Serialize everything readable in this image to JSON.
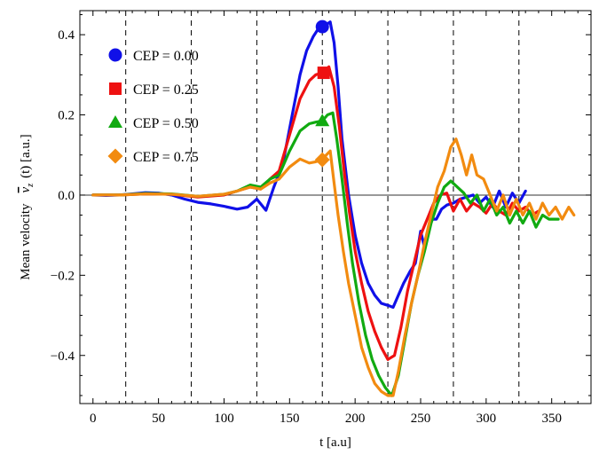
{
  "chart_data": {
    "type": "line",
    "xlabel": "t  [a.u]",
    "ylabel_prefix": "Mean velocity",
    "ylabel_symbol": "v",
    "ylabel_subscript": "z",
    "ylabel_suffix": "(t)  [a.u.]",
    "xlim": [
      -10,
      380
    ],
    "ylim": [
      -0.52,
      0.46
    ],
    "x_ticks": [
      0,
      50,
      100,
      150,
      200,
      250,
      300,
      350
    ],
    "y_ticks": [
      0.4,
      0.2,
      0.0,
      -0.2,
      -0.4
    ],
    "y_tick_labels": [
      "0.4",
      "0.2",
      "0.0",
      "−0.2",
      "−0.4"
    ],
    "dashed_verticals": [
      25,
      75,
      125,
      175,
      225,
      275,
      325
    ],
    "zero_line": true,
    "grid": false,
    "legend_position": "top-left",
    "series": [
      {
        "name": "CEP = 0.00",
        "color": "#1010e8",
        "marker": "circle",
        "peak_marker": {
          "x": 175,
          "y": 0.42
        },
        "x": [
          0,
          10,
          20,
          30,
          40,
          50,
          60,
          70,
          80,
          90,
          100,
          110,
          118,
          125,
          132,
          138,
          145,
          152,
          158,
          163,
          168,
          172,
          175,
          178,
          181,
          184,
          187,
          190,
          195,
          200,
          205,
          210,
          215,
          220,
          225,
          229,
          233,
          237,
          242,
          246,
          250,
          253,
          256,
          259,
          262,
          266,
          270,
          275,
          280,
          285,
          290,
          295,
          300,
          305,
          310,
          315,
          320,
          325,
          330
        ],
        "y": [
          0.0,
          -0.001,
          0.0,
          0.003,
          0.006,
          0.005,
          0.0,
          -0.01,
          -0.018,
          -0.022,
          -0.028,
          -0.035,
          -0.03,
          -0.01,
          -0.038,
          0.02,
          0.08,
          0.2,
          0.3,
          0.36,
          0.395,
          0.415,
          0.42,
          0.425,
          0.432,
          0.38,
          0.27,
          0.14,
          0.0,
          -0.1,
          -0.17,
          -0.22,
          -0.25,
          -0.27,
          -0.275,
          -0.28,
          -0.25,
          -0.22,
          -0.19,
          -0.17,
          -0.09,
          -0.13,
          -0.08,
          -0.06,
          -0.06,
          -0.035,
          -0.025,
          -0.02,
          -0.01,
          -0.005,
          0.0,
          -0.02,
          -0.005,
          -0.03,
          0.01,
          -0.03,
          0.005,
          -0.02,
          0.01
        ]
      },
      {
        "name": "CEP = 0.25",
        "color": "#ee1111",
        "marker": "square",
        "peak_marker": {
          "x": 176,
          "y": 0.305
        },
        "x": [
          0,
          20,
          40,
          60,
          80,
          100,
          110,
          120,
          128,
          135,
          142,
          150,
          158,
          165,
          170,
          175,
          180,
          184,
          188,
          192,
          196,
          200,
          205,
          210,
          215,
          220,
          225,
          230,
          235,
          240,
          245,
          250,
          255,
          260,
          265,
          270,
          275,
          280,
          285,
          290,
          295,
          300,
          305,
          310,
          315,
          320,
          325,
          330,
          335,
          340
        ],
        "y": [
          0.0,
          0.0,
          0.003,
          0.002,
          -0.005,
          0.0,
          0.01,
          0.02,
          0.015,
          0.04,
          0.06,
          0.15,
          0.24,
          0.285,
          0.3,
          0.305,
          0.32,
          0.27,
          0.17,
          0.05,
          -0.05,
          -0.14,
          -0.22,
          -0.29,
          -0.34,
          -0.38,
          -0.41,
          -0.4,
          -0.33,
          -0.24,
          -0.17,
          -0.1,
          -0.06,
          -0.02,
          0.0,
          0.005,
          -0.04,
          -0.01,
          -0.04,
          -0.02,
          -0.03,
          -0.045,
          -0.02,
          -0.04,
          -0.05,
          -0.02,
          -0.04,
          -0.03,
          -0.05,
          -0.04
        ]
      },
      {
        "name": "CEP = 0.50",
        "color": "#11aa11",
        "marker": "triangle",
        "peak_marker": {
          "x": 175,
          "y": 0.185
        },
        "x": [
          0,
          20,
          40,
          60,
          80,
          100,
          110,
          120,
          128,
          135,
          142,
          150,
          158,
          165,
          170,
          175,
          179,
          183,
          186,
          190,
          194,
          198,
          203,
          208,
          213,
          218,
          223,
          228,
          233,
          238,
          243,
          248,
          253,
          258,
          263,
          268,
          273,
          278,
          283,
          288,
          293,
          298,
          303,
          308,
          313,
          318,
          323,
          328,
          333,
          338,
          343,
          348,
          355
        ],
        "y": [
          0.0,
          0.0,
          0.004,
          0.003,
          -0.003,
          0.002,
          0.01,
          0.025,
          0.02,
          0.04,
          0.05,
          0.11,
          0.16,
          0.178,
          0.182,
          0.185,
          0.2,
          0.205,
          0.14,
          0.04,
          -0.07,
          -0.17,
          -0.27,
          -0.35,
          -0.41,
          -0.45,
          -0.48,
          -0.5,
          -0.45,
          -0.36,
          -0.27,
          -0.2,
          -0.14,
          -0.07,
          -0.02,
          0.02,
          0.035,
          0.02,
          0.005,
          -0.02,
          0.0,
          -0.04,
          -0.01,
          -0.05,
          -0.03,
          -0.07,
          -0.04,
          -0.07,
          -0.04,
          -0.08,
          -0.05,
          -0.06,
          -0.06
        ]
      },
      {
        "name": "CEP = 0.75",
        "color": "#f28b10",
        "marker": "diamond",
        "peak_marker": {
          "x": 175,
          "y": 0.088
        },
        "x": [
          0,
          20,
          40,
          60,
          80,
          100,
          110,
          120,
          128,
          135,
          142,
          150,
          158,
          165,
          170,
          175,
          178,
          181,
          184,
          187,
          191,
          195,
          200,
          205,
          210,
          215,
          220,
          225,
          229,
          233,
          238,
          243,
          248,
          253,
          258,
          263,
          268,
          273,
          277,
          281,
          285,
          289,
          293,
          298,
          303,
          308,
          313,
          318,
          323,
          328,
          333,
          338,
          343,
          348,
          353,
          358,
          363,
          367
        ],
        "y": [
          0.0,
          0.0,
          0.003,
          0.002,
          -0.003,
          0.002,
          0.01,
          0.02,
          0.015,
          0.03,
          0.04,
          0.07,
          0.09,
          0.08,
          0.083,
          0.088,
          0.1,
          0.11,
          0.03,
          -0.05,
          -0.14,
          -0.22,
          -0.3,
          -0.38,
          -0.43,
          -0.47,
          -0.49,
          -0.5,
          -0.5,
          -0.44,
          -0.35,
          -0.27,
          -0.2,
          -0.12,
          -0.05,
          0.02,
          0.06,
          0.12,
          0.14,
          0.1,
          0.05,
          0.1,
          0.05,
          0.04,
          0.0,
          -0.04,
          0.0,
          -0.05,
          -0.01,
          -0.05,
          -0.02,
          -0.06,
          -0.02,
          -0.05,
          -0.03,
          -0.06,
          -0.03,
          -0.05
        ]
      }
    ]
  }
}
